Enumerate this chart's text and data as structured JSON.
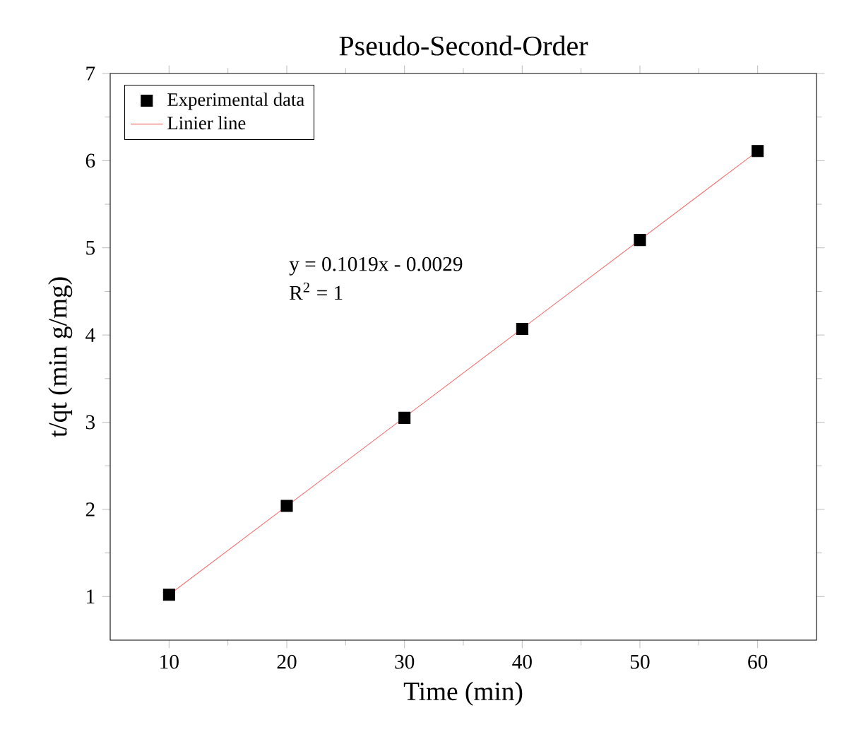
{
  "chart_data": {
    "type": "scatter",
    "title": "Pseudo-Second-Order",
    "xlabel": "Time (min)",
    "ylabel": "t/qt (min g/mg)",
    "xlim": [
      5,
      65
    ],
    "xticks": [
      10,
      20,
      30,
      40,
      50,
      60
    ],
    "ylim": [
      0.5,
      7
    ],
    "yticks": [
      1,
      2,
      3,
      4,
      5,
      6,
      7
    ],
    "legend": "top left",
    "grid": false,
    "annotations": [
      "y = 0.1019x - 0.0029",
      "R$^{2}$ = 1"
    ],
    "series": [
      {
        "name": "Experimental data",
        "marker": "square",
        "color": "#000000",
        "x": [
          10,
          20,
          30,
          40,
          50,
          60
        ],
        "values": [
          1.02,
          2.04,
          3.05,
          4.07,
          5.09,
          6.11
        ]
      },
      {
        "name": "Linier line",
        "type": "line",
        "marker": "none",
        "line_style": "solid",
        "color": "#f07070",
        "x": [
          10,
          60
        ],
        "values": [
          1.02,
          6.11
        ]
      }
    ]
  }
}
